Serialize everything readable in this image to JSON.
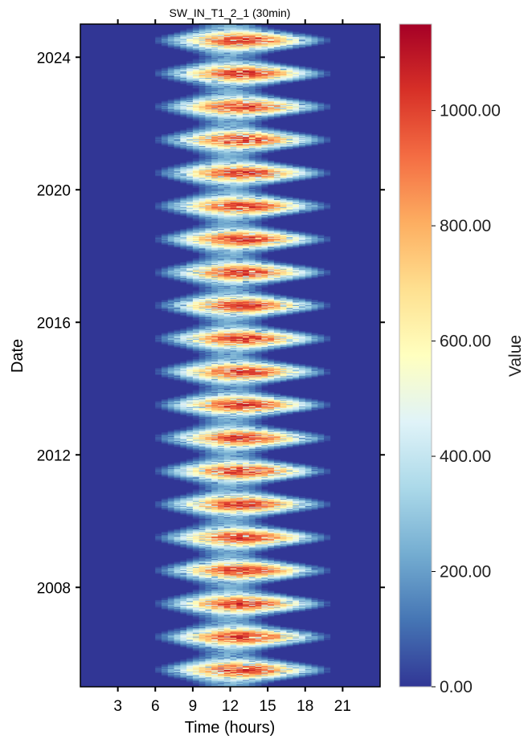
{
  "chart_data": {
    "type": "heatmap",
    "title": "SW_IN_T1_2_1 (30min)",
    "xlabel": "Time (hours)",
    "ylabel": "Date",
    "x_ticks": [
      3,
      6,
      9,
      12,
      15,
      18,
      21
    ],
    "x_tick_labels": [
      "3",
      "6",
      "9",
      "12",
      "15",
      "18",
      "21"
    ],
    "xlim": [
      0,
      24
    ],
    "y_ticks": [
      2008,
      2012,
      2016,
      2020,
      2024
    ],
    "y_tick_labels": [
      "2008",
      "2012",
      "2016",
      "2020",
      "2024"
    ],
    "ylim": [
      2005.0,
      2025.0
    ],
    "colorbar": {
      "label": "Value",
      "range": [
        0,
        1150
      ],
      "ticks": [
        0,
        200,
        400,
        600,
        800,
        1000
      ],
      "tick_labels": [
        "0.00",
        "200.00",
        "400.00",
        "600.00",
        "800.00",
        "1000.00"
      ],
      "colormap": "RdYlBu_r"
    },
    "summary_features": {
      "summer_peaks": [
        2005.5,
        2006.5,
        2007.5,
        2008.5,
        2009.5,
        2010.5,
        2011.5,
        2012.5,
        2013.5,
        2014.5,
        2015.5,
        2016.5,
        2017.5,
        2018.5,
        2019.5,
        2020.5,
        2021.5,
        2022.5,
        2023.5,
        2024.5
      ],
      "summer_day_start_hour": 5.5,
      "summer_day_end_hour": 20.5,
      "winter_day_start_hour": 9,
      "winter_day_end_hour": 15,
      "summer_peak_value": 1050,
      "winter_peak_value": 250
    },
    "grid": false,
    "legend": "none"
  }
}
